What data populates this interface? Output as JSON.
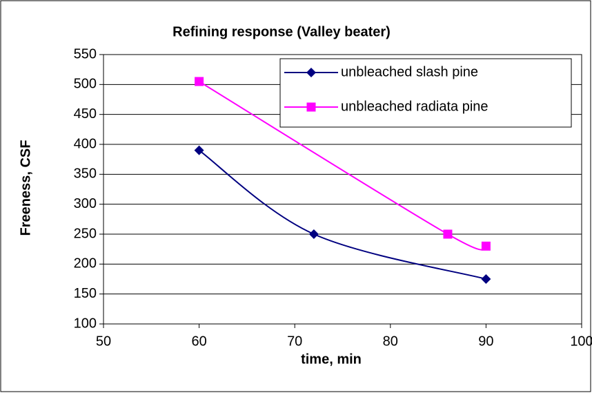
{
  "chart_data": {
    "type": "line",
    "title": "Refining response (Valley beater)",
    "xlabel": "time, min",
    "ylabel": "Freeness, CSF",
    "series": [
      {
        "name": "unbleached slash pine",
        "color": "#000080",
        "marker": "diamond",
        "x": [
          60,
          72,
          90
        ],
        "values": [
          390,
          250,
          175
        ]
      },
      {
        "name": "unbleached radiata pine",
        "color": "#ff00ff",
        "marker": "square",
        "x": [
          60,
          86,
          90
        ],
        "values": [
          505,
          250,
          230
        ]
      }
    ],
    "xlim": [
      50,
      100
    ],
    "xticks": [
      50,
      60,
      70,
      80,
      90,
      100
    ],
    "ylim": [
      100,
      550
    ],
    "yticks": [
      100,
      150,
      200,
      250,
      300,
      350,
      400,
      450,
      500,
      550
    ],
    "grid": true,
    "smooth": true,
    "legend": "upper right"
  }
}
